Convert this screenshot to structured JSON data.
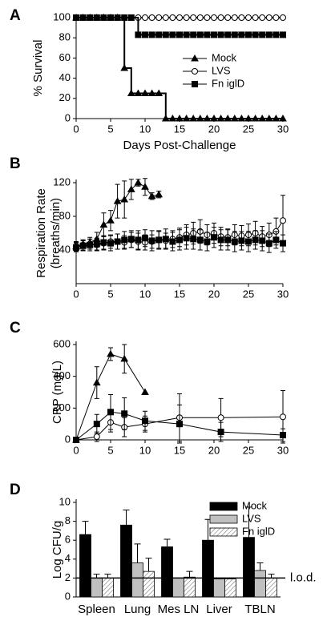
{
  "chart_data": [
    {
      "type": "line",
      "label": "A",
      "step": true,
      "ylabel": [
        "% Survival"
      ],
      "xlabel": "Days Post-Challenge",
      "x": [
        0,
        1,
        2,
        3,
        4,
        5,
        6,
        7,
        8,
        9,
        10,
        11,
        12,
        13,
        14,
        15,
        16,
        17,
        18,
        19,
        20,
        21,
        22,
        23,
        24,
        25,
        26,
        27,
        28,
        29,
        30
      ],
      "xlim": [
        0,
        30
      ],
      "xticks": [
        0,
        5,
        10,
        15,
        20,
        25,
        30
      ],
      "ylim": [
        0,
        100
      ],
      "yticks": [
        0,
        20,
        40,
        60,
        80,
        100
      ],
      "legend": "center-right",
      "series": [
        {
          "name": "Mock",
          "marker": "triangle",
          "color": "#000000",
          "values": [
            100,
            100,
            100,
            100,
            100,
            100,
            100,
            50,
            25,
            25,
            25,
            25,
            25,
            0,
            0,
            0,
            0,
            0,
            0,
            0,
            0,
            0,
            0,
            0,
            0,
            0,
            0,
            0,
            0,
            0,
            0
          ]
        },
        {
          "name": "LVS",
          "marker": "circle",
          "color": "#000000",
          "values": [
            100,
            100,
            100,
            100,
            100,
            100,
            100,
            100,
            100,
            100,
            100,
            100,
            100,
            100,
            100,
            100,
            100,
            100,
            100,
            100,
            100,
            100,
            100,
            100,
            100,
            100,
            100,
            100,
            100,
            100,
            100
          ]
        },
        {
          "name": "Fn iglD",
          "marker": "square",
          "color": "#000000",
          "values": [
            100,
            100,
            100,
            100,
            100,
            100,
            100,
            100,
            100,
            83,
            83,
            83,
            83,
            83,
            83,
            83,
            83,
            83,
            83,
            83,
            83,
            83,
            83,
            83,
            83,
            83,
            83,
            83,
            83,
            83,
            83
          ]
        }
      ]
    },
    {
      "type": "line",
      "label": "B",
      "ylabel": [
        "Respiration Rate",
        "(breaths/min)"
      ],
      "xlim": [
        0,
        30
      ],
      "xticks": [
        0,
        5,
        10,
        15,
        20,
        25,
        30
      ],
      "ylim": [
        0,
        120
      ],
      "yticks": [
        40,
        80,
        120
      ],
      "series": [
        {
          "name": "Mock",
          "marker": "triangle",
          "color": "#000000",
          "x": [
            0,
            1,
            2,
            3,
            4,
            5,
            6,
            7,
            8,
            9,
            10,
            11,
            12
          ],
          "values": [
            44,
            47,
            49,
            53,
            70,
            75,
            98,
            100,
            112,
            120,
            115,
            104,
            106
          ],
          "errors": [
            6,
            5,
            6,
            8,
            14,
            12,
            20,
            22,
            12,
            4,
            10,
            4,
            4
          ]
        },
        {
          "name": "LVS",
          "marker": "circle",
          "color": "#000000",
          "x": [
            0,
            1,
            2,
            3,
            4,
            5,
            6,
            7,
            8,
            9,
            10,
            11,
            12,
            13,
            14,
            15,
            16,
            17,
            18,
            19,
            20,
            21,
            22,
            23,
            24,
            25,
            26,
            27,
            28,
            29,
            30
          ],
          "values": [
            44,
            46,
            47,
            46,
            48,
            50,
            50,
            49,
            52,
            50,
            49,
            50,
            52,
            51,
            53,
            55,
            58,
            60,
            62,
            58,
            60,
            56,
            55,
            58,
            57,
            58,
            60,
            56,
            58,
            62,
            75
          ],
          "errors": [
            5,
            6,
            6,
            7,
            8,
            8,
            9,
            8,
            9,
            10,
            9,
            8,
            10,
            9,
            10,
            11,
            12,
            13,
            14,
            12,
            12,
            11,
            10,
            12,
            12,
            13,
            14,
            12,
            14,
            16,
            30
          ]
        },
        {
          "name": "Fn iglD",
          "marker": "square",
          "color": "#000000",
          "x": [
            0,
            1,
            2,
            3,
            4,
            5,
            6,
            7,
            8,
            9,
            10,
            11,
            12,
            13,
            14,
            15,
            16,
            17,
            18,
            19,
            20,
            21,
            22,
            23,
            24,
            25,
            26,
            27,
            28,
            29,
            30
          ],
          "values": [
            43,
            45,
            46,
            47,
            49,
            48,
            50,
            52,
            53,
            52,
            54,
            51,
            52,
            53,
            50,
            52,
            54,
            53,
            52,
            50,
            55,
            52,
            52,
            50,
            51,
            50,
            52,
            51,
            48,
            52,
            48
          ],
          "errors": [
            5,
            6,
            7,
            7,
            8,
            9,
            9,
            10,
            10,
            11,
            10,
            12,
            11,
            12,
            11,
            12,
            13,
            12,
            12,
            11,
            12,
            12,
            12,
            12,
            11,
            12,
            11,
            12,
            11,
            10,
            10
          ]
        }
      ]
    },
    {
      "type": "line",
      "label": "C",
      "ylabel": [
        "CRP (mg/L)"
      ],
      "xlim": [
        0,
        30
      ],
      "xticks": [
        0,
        5,
        10,
        15,
        20,
        25,
        30
      ],
      "ylim": [
        0,
        600
      ],
      "yticks": [
        0,
        200,
        400,
        600
      ],
      "series": [
        {
          "name": "Mock",
          "marker": "triangle",
          "color": "#000000",
          "x": [
            0,
            3,
            5,
            7,
            10
          ],
          "values": [
            0,
            360,
            540,
            510,
            300
          ],
          "errors": [
            0,
            100,
            40,
            90,
            0
          ]
        },
        {
          "name": "LVS",
          "marker": "circle",
          "color": "#000000",
          "x": [
            0,
            3,
            5,
            7,
            10,
            15,
            21,
            30
          ],
          "values": [
            0,
            20,
            110,
            80,
            100,
            140,
            140,
            145
          ],
          "errors": [
            0,
            30,
            60,
            60,
            50,
            150,
            120,
            165
          ]
        },
        {
          "name": "Fn iglD",
          "marker": "square",
          "color": "#000000",
          "x": [
            0,
            3,
            5,
            7,
            10,
            15,
            21,
            30
          ],
          "values": [
            0,
            100,
            175,
            165,
            120,
            100,
            50,
            30
          ],
          "errors": [
            0,
            60,
            110,
            100,
            60,
            120,
            60,
            40
          ]
        }
      ]
    },
    {
      "type": "bar",
      "label": "D",
      "ylabel": [
        "Log CFU/g"
      ],
      "categories": [
        "Spleen",
        "Lung",
        "Mes LN",
        "Liver",
        "TBLN"
      ],
      "ylim": [
        0,
        10
      ],
      "yticks": [
        0,
        2,
        4,
        6,
        8,
        10
      ],
      "legend": "upper-right",
      "lod": {
        "value": 2,
        "label": "l.o.d."
      },
      "series": [
        {
          "name": "Mock",
          "color": "#000000",
          "values": [
            6.6,
            7.6,
            5.3,
            6.0,
            6.3
          ],
          "errors": [
            1.4,
            1.6,
            0.8,
            2.2,
            3.2
          ]
        },
        {
          "name": "LVS",
          "color": "#c0c0c0",
          "values": [
            2.0,
            3.6,
            2.0,
            1.9,
            2.8
          ],
          "errors": [
            0.4,
            2.0,
            0,
            0,
            0.8
          ]
        },
        {
          "name": "Fn iglD",
          "color": "#ffffff",
          "pattern": "hatch",
          "values": [
            2.0,
            2.7,
            2.1,
            1.9,
            2.0
          ],
          "errors": [
            0.4,
            1.4,
            0.6,
            0,
            0.4
          ]
        }
      ]
    }
  ]
}
